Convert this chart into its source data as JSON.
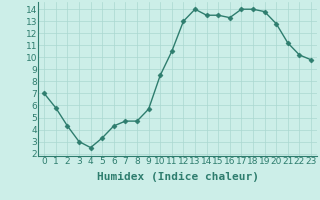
{
  "x": [
    0,
    1,
    2,
    3,
    4,
    5,
    6,
    7,
    8,
    9,
    10,
    11,
    12,
    13,
    14,
    15,
    16,
    17,
    18,
    19,
    20,
    21,
    22,
    23
  ],
  "y": [
    7.0,
    5.8,
    4.3,
    3.0,
    2.5,
    3.3,
    4.3,
    4.7,
    4.7,
    5.7,
    8.5,
    10.5,
    13.0,
    14.0,
    13.5,
    13.5,
    13.3,
    14.0,
    14.0,
    13.8,
    12.8,
    11.2,
    10.2,
    9.8
  ],
  "line_color": "#2e7d6e",
  "marker": "D",
  "marker_size": 2.5,
  "bg_color": "#cceee8",
  "grid_color": "#aad8d0",
  "xlabel": "Humidex (Indice chaleur)",
  "xlim": [
    -0.5,
    23.5
  ],
  "ylim": [
    1.8,
    14.6
  ],
  "yticks": [
    2,
    3,
    4,
    5,
    6,
    7,
    8,
    9,
    10,
    11,
    12,
    13,
    14
  ],
  "xticks": [
    0,
    1,
    2,
    3,
    4,
    5,
    6,
    7,
    8,
    9,
    10,
    11,
    12,
    13,
    14,
    15,
    16,
    17,
    18,
    19,
    20,
    21,
    22,
    23
  ],
  "tick_labelsize": 6.5,
  "xlabel_fontsize": 8,
  "line_width": 1.0
}
